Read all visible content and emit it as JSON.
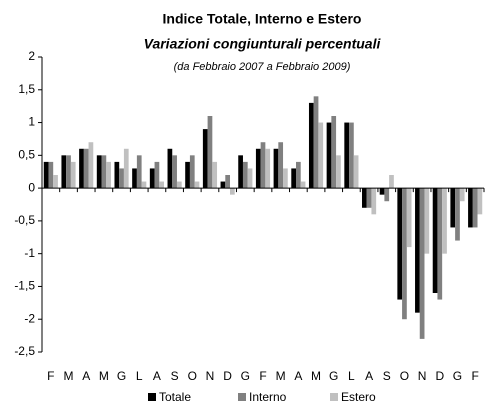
{
  "chart_data": {
    "type": "bar",
    "title": "Indice Totale, Interno e Estero",
    "subtitle": "Variazioni congiunturali percentuali",
    "note": "(da Febbraio 2007 a Febbraio 2009)",
    "categories": [
      "F",
      "M",
      "A",
      "M",
      "G",
      "L",
      "A",
      "S",
      "O",
      "N",
      "D",
      "G",
      "F",
      "M",
      "A",
      "M",
      "G",
      "L",
      "A",
      "S",
      "O",
      "N",
      "D",
      "G",
      "F"
    ],
    "series": [
      {
        "name": "Totale",
        "color": "#000000",
        "values": [
          0.4,
          0.5,
          0.6,
          0.5,
          0.4,
          0.3,
          0.3,
          0.6,
          0.4,
          0.9,
          0.1,
          0.5,
          0.6,
          0.6,
          0.3,
          1.3,
          1.0,
          1.0,
          -0.3,
          -0.1,
          -1.7,
          -1.9,
          -1.6,
          -0.6,
          -0.6
        ]
      },
      {
        "name": "Interno",
        "color": "#808080",
        "values": [
          0.4,
          0.5,
          0.6,
          0.5,
          0.3,
          0.5,
          0.4,
          0.5,
          0.5,
          1.1,
          0.2,
          0.4,
          0.7,
          0.7,
          0.4,
          1.4,
          1.1,
          1.0,
          -0.3,
          -0.2,
          -2.0,
          -2.3,
          -1.7,
          -0.8,
          -0.6
        ]
      },
      {
        "name": "Estero",
        "color": "#c0c0c0",
        "values": [
          0.2,
          0.4,
          0.7,
          0.4,
          0.6,
          0.1,
          0.1,
          0.1,
          0.1,
          0.4,
          -0.1,
          0.3,
          0.6,
          0.3,
          0.1,
          1.0,
          0.5,
          0.5,
          -0.4,
          0.2,
          -0.9,
          -1.0,
          -1.0,
          -0.2,
          -0.4
        ]
      }
    ],
    "ylim": [
      -2.5,
      2
    ],
    "yticks": [
      {
        "value": -2.5,
        "label": "-2,5"
      },
      -2,
      {
        "value": -1.5,
        "label": "-1,5"
      },
      -1,
      {
        "value": -0.5,
        "label": "-0,5"
      },
      0,
      {
        "value": 0.5,
        "label": "0,5"
      },
      1,
      {
        "value": 1.5,
        "label": "1,5"
      },
      2
    ],
    "legend": "bottom"
  }
}
